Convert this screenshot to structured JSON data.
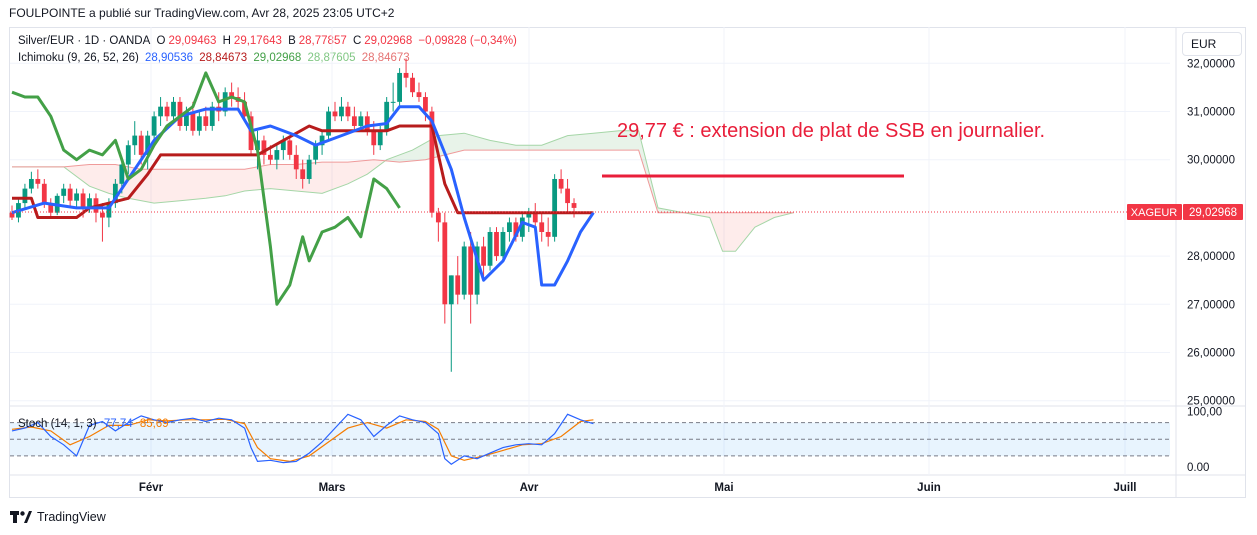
{
  "header": {
    "published": "FOULPOINTE a publié sur TradingView.com, Avr 28, 2025 23:05 UTC+2"
  },
  "legend": {
    "symbol": "Silver/EUR · 1D · OANDA",
    "o_label": "O",
    "o_value": "29,09463",
    "h_label": "H",
    "h_value": "29,17643",
    "b_label": "B",
    "b_value": "28,77857",
    "c_label": "C",
    "c_value": "29,02968",
    "change": "−0,09828 (−0,34%)",
    "ichimoku_label": "Ichimoku (9, 26, 52, 26)",
    "ichimoku_values": [
      "28,90536",
      "28,84673",
      "29,02968",
      "28,87605",
      "28,84673"
    ],
    "stoch_label": "Stoch (14, 1, 3)",
    "stoch_values": [
      "77,74",
      "85,69"
    ]
  },
  "currency_button": "EUR",
  "price_tag": {
    "symbol": "XAGEUR",
    "value": "29,02968"
  },
  "annotation": "29,77 € : extension de plat de SSB en journalier.",
  "brand": "TradingView",
  "colors": {
    "up": "#089981",
    "down": "#f23645",
    "tenkan": "#2962ff",
    "kijun": "#b71c1c",
    "chikou": "#43a047",
    "spanA": "#a5d6a7",
    "spanB": "#ef9a9a",
    "annotation": "#e91e3a",
    "stochK": "#2962ff",
    "stochD": "#f57c00"
  },
  "chart_data": {
    "type": "candlestick",
    "y_axis_labels": [
      "32,00000",
      "31,00000",
      "30,00000",
      "28,00000",
      "27,00000",
      "26,00000",
      "25,00000"
    ],
    "x_axis_labels": [
      "Févr",
      "Mars",
      "Avr",
      "Mai",
      "Juin",
      "Juill"
    ],
    "last_price": 29.03,
    "extension_level": 29.77,
    "candles": [
      [
        28.9,
        29.05,
        28.75,
        28.8
      ],
      [
        28.8,
        29.2,
        28.7,
        29.1
      ],
      [
        29.1,
        29.5,
        29.0,
        29.4
      ],
      [
        29.4,
        29.75,
        29.3,
        29.6
      ],
      [
        29.6,
        29.8,
        29.4,
        29.5
      ],
      [
        29.5,
        29.6,
        29.0,
        29.1
      ],
      [
        29.1,
        29.2,
        28.8,
        28.9
      ],
      [
        28.9,
        29.3,
        28.85,
        29.25
      ],
      [
        29.25,
        29.5,
        29.1,
        29.4
      ],
      [
        29.4,
        29.5,
        29.0,
        29.15
      ],
      [
        29.15,
        29.4,
        29.0,
        29.3
      ],
      [
        29.3,
        29.4,
        28.8,
        29.0
      ],
      [
        29.0,
        29.3,
        28.9,
        29.2
      ],
      [
        29.2,
        29.3,
        28.7,
        28.9
      ],
      [
        28.9,
        29.1,
        28.3,
        28.8
      ],
      [
        28.8,
        29.2,
        28.6,
        29.1
      ],
      [
        29.1,
        29.6,
        29.0,
        29.5
      ],
      [
        29.5,
        30.0,
        29.3,
        29.9
      ],
      [
        29.9,
        30.4,
        29.7,
        30.3
      ],
      [
        30.3,
        30.8,
        30.1,
        30.5
      ],
      [
        30.5,
        30.6,
        29.9,
        30.1
      ],
      [
        30.1,
        30.6,
        29.8,
        30.5
      ],
      [
        30.5,
        31.0,
        30.4,
        30.9
      ],
      [
        30.9,
        31.3,
        30.7,
        31.1
      ],
      [
        31.1,
        31.2,
        30.8,
        30.9
      ],
      [
        30.9,
        31.3,
        30.8,
        31.2
      ],
      [
        31.2,
        31.3,
        30.6,
        30.7
      ],
      [
        30.7,
        31.1,
        30.6,
        31.0
      ],
      [
        31.0,
        31.2,
        30.5,
        30.6
      ],
      [
        30.6,
        31.0,
        30.5,
        30.9
      ],
      [
        30.9,
        31.1,
        30.6,
        30.7
      ],
      [
        30.7,
        31.2,
        30.6,
        31.1
      ],
      [
        31.1,
        31.4,
        30.8,
        31.0
      ],
      [
        31.0,
        31.5,
        30.9,
        31.4
      ],
      [
        31.4,
        31.6,
        31.1,
        31.3
      ],
      [
        31.3,
        31.5,
        31.0,
        31.2
      ],
      [
        31.2,
        31.4,
        30.8,
        30.9
      ],
      [
        30.9,
        31.0,
        30.1,
        30.2
      ],
      [
        30.2,
        30.6,
        29.8,
        30.4
      ],
      [
        30.4,
        30.5,
        29.9,
        30.1
      ],
      [
        30.1,
        30.3,
        29.9,
        30.0
      ],
      [
        30.0,
        30.3,
        29.8,
        30.2
      ],
      [
        30.2,
        30.5,
        30.0,
        30.4
      ],
      [
        30.4,
        30.5,
        30.0,
        30.1
      ],
      [
        30.1,
        30.3,
        29.6,
        29.8
      ],
      [
        29.8,
        30.0,
        29.4,
        29.6
      ],
      [
        29.6,
        30.1,
        29.5,
        30.0
      ],
      [
        30.0,
        30.4,
        29.9,
        30.3
      ],
      [
        30.3,
        30.6,
        30.1,
        30.5
      ],
      [
        30.5,
        31.1,
        30.4,
        31.0
      ],
      [
        31.0,
        31.2,
        30.8,
        30.9
      ],
      [
        30.9,
        31.3,
        30.8,
        31.1
      ],
      [
        31.1,
        31.2,
        30.8,
        30.9
      ],
      [
        30.9,
        31.1,
        30.6,
        30.7
      ],
      [
        30.7,
        31.0,
        30.6,
        30.9
      ],
      [
        30.9,
        31.0,
        30.5,
        30.6
      ],
      [
        30.6,
        30.8,
        30.1,
        30.3
      ],
      [
        30.3,
        30.7,
        30.2,
        30.6
      ],
      [
        30.6,
        31.3,
        30.5,
        31.2
      ],
      [
        31.2,
        31.6,
        31.0,
        31.2
      ],
      [
        31.2,
        31.9,
        31.1,
        31.8
      ],
      [
        31.8,
        32.1,
        31.5,
        31.7
      ],
      [
        31.7,
        31.8,
        31.3,
        31.4
      ],
      [
        31.4,
        31.6,
        31.2,
        31.3
      ],
      [
        31.3,
        31.4,
        30.8,
        31.0
      ],
      [
        31.0,
        31.1,
        28.8,
        28.9
      ],
      [
        28.9,
        29.0,
        28.3,
        28.7
      ],
      [
        28.7,
        28.9,
        26.6,
        27.0
      ],
      [
        27.0,
        27.6,
        25.6,
        27.6
      ],
      [
        27.6,
        28.0,
        27.0,
        27.2
      ],
      [
        27.2,
        28.3,
        27.1,
        28.2
      ],
      [
        28.2,
        28.5,
        26.6,
        27.2
      ],
      [
        27.2,
        28.3,
        27.0,
        28.2
      ],
      [
        28.2,
        28.4,
        27.5,
        27.8
      ],
      [
        27.8,
        28.6,
        27.7,
        28.5
      ],
      [
        28.5,
        28.6,
        27.9,
        28.0
      ],
      [
        28.0,
        28.6,
        27.9,
        28.5
      ],
      [
        28.5,
        28.8,
        28.3,
        28.7
      ],
      [
        28.7,
        28.8,
        28.3,
        28.4
      ],
      [
        28.4,
        28.9,
        28.3,
        28.8
      ],
      [
        28.8,
        29.0,
        28.5,
        28.9
      ],
      [
        28.9,
        29.1,
        28.6,
        28.7
      ],
      [
        28.7,
        28.9,
        28.3,
        28.5
      ],
      [
        28.5,
        28.8,
        28.2,
        28.4
      ],
      [
        28.4,
        29.7,
        28.3,
        29.6
      ],
      [
        29.6,
        29.8,
        29.3,
        29.4
      ],
      [
        29.4,
        29.6,
        28.9,
        29.1
      ],
      [
        29.1,
        29.2,
        28.8,
        29.0
      ]
    ],
    "tenkan": [
      [
        0,
        28.9
      ],
      [
        5,
        29.1
      ],
      [
        10,
        29.0
      ],
      [
        15,
        29.0
      ],
      [
        18,
        29.6
      ],
      [
        22,
        30.4
      ],
      [
        26,
        30.9
      ],
      [
        30,
        31.05
      ],
      [
        35,
        31.05
      ],
      [
        37,
        30.6
      ],
      [
        40,
        30.7
      ],
      [
        44,
        30.5
      ],
      [
        47,
        30.3
      ],
      [
        51,
        30.5
      ],
      [
        55,
        30.7
      ],
      [
        58,
        30.75
      ],
      [
        60,
        31.1
      ],
      [
        63,
        31.1
      ],
      [
        65,
        30.8
      ],
      [
        68,
        29.8
      ],
      [
        70,
        28.8
      ],
      [
        73,
        27.5
      ],
      [
        76,
        27.9
      ],
      [
        79,
        28.7
      ],
      [
        81,
        28.6
      ],
      [
        82,
        27.4
      ],
      [
        84,
        27.4
      ],
      [
        86,
        27.9
      ],
      [
        88,
        28.5
      ],
      [
        90,
        28.9
      ]
    ],
    "kijun": [
      [
        0,
        29.2
      ],
      [
        3,
        29.2
      ],
      [
        4,
        28.8
      ],
      [
        10,
        28.8
      ],
      [
        12,
        29.0
      ],
      [
        18,
        29.2
      ],
      [
        21,
        29.7
      ],
      [
        23,
        30.1
      ],
      [
        36,
        30.1
      ],
      [
        38,
        30.1
      ],
      [
        46,
        30.7
      ],
      [
        48,
        30.6
      ],
      [
        58,
        30.6
      ],
      [
        60,
        30.7
      ],
      [
        65,
        30.7
      ],
      [
        67,
        29.5
      ],
      [
        69,
        28.9
      ],
      [
        90,
        28.9
      ]
    ],
    "chikou": [
      [
        0,
        31.4
      ],
      [
        2,
        31.3
      ],
      [
        4,
        31.3
      ],
      [
        6,
        30.9
      ],
      [
        8,
        30.2
      ],
      [
        10,
        30.0
      ],
      [
        12,
        30.2
      ],
      [
        14,
        30.1
      ],
      [
        16,
        30.4
      ],
      [
        18,
        29.6
      ],
      [
        20,
        29.8
      ],
      [
        22,
        30.3
      ],
      [
        24,
        30.7
      ],
      [
        26,
        30.9
      ],
      [
        28,
        31.1
      ],
      [
        30,
        31.8
      ],
      [
        32,
        31.2
      ],
      [
        34,
        31.3
      ],
      [
        36,
        31.2
      ],
      [
        38,
        30.2
      ],
      [
        40,
        28.2
      ],
      [
        41,
        27.0
      ],
      [
        43,
        27.4
      ],
      [
        45,
        28.4
      ],
      [
        46,
        27.9
      ],
      [
        48,
        28.5
      ],
      [
        50,
        28.6
      ],
      [
        52,
        28.8
      ],
      [
        54,
        28.4
      ],
      [
        56,
        29.6
      ],
      [
        58,
        29.4
      ],
      [
        60,
        29.0
      ]
    ],
    "spanA": [
      [
        0,
        29.85
      ],
      [
        8,
        29.85
      ],
      [
        12,
        29.45
      ],
      [
        15,
        29.3
      ],
      [
        18,
        29.2
      ],
      [
        22,
        29.1
      ],
      [
        26,
        29.15
      ],
      [
        30,
        29.2
      ],
      [
        33,
        29.25
      ],
      [
        36,
        29.35
      ],
      [
        40,
        29.4
      ],
      [
        44,
        29.35
      ],
      [
        48,
        29.3
      ],
      [
        52,
        29.5
      ],
      [
        55,
        29.7
      ],
      [
        58,
        30.0
      ],
      [
        62,
        30.2
      ],
      [
        66,
        30.5
      ],
      [
        70,
        30.55
      ],
      [
        74,
        30.4
      ],
      [
        78,
        30.3
      ],
      [
        82,
        30.3
      ],
      [
        86,
        30.5
      ],
      [
        90,
        30.55
      ],
      [
        94,
        30.6
      ],
      [
        97,
        30.6
      ],
      [
        100,
        29.0
      ],
      [
        104,
        28.9
      ],
      [
        108,
        28.8
      ],
      [
        110,
        28.1
      ],
      [
        112,
        28.1
      ],
      [
        115,
        28.6
      ],
      [
        118,
        28.8
      ],
      [
        121,
        28.9
      ]
    ],
    "spanB": [
      [
        0,
        29.85
      ],
      [
        8,
        29.85
      ],
      [
        12,
        29.9
      ],
      [
        16,
        29.9
      ],
      [
        20,
        29.8
      ],
      [
        24,
        29.8
      ],
      [
        28,
        29.8
      ],
      [
        32,
        29.8
      ],
      [
        36,
        29.8
      ],
      [
        40,
        29.9
      ],
      [
        44,
        29.9
      ],
      [
        48,
        29.95
      ],
      [
        52,
        29.95
      ],
      [
        56,
        30.0
      ],
      [
        60,
        29.95
      ],
      [
        64,
        30.0
      ],
      [
        70,
        30.2
      ],
      [
        76,
        30.2
      ],
      [
        80,
        30.2
      ],
      [
        84,
        30.2
      ],
      [
        88,
        30.2
      ],
      [
        94,
        30.2
      ],
      [
        97,
        30.2
      ],
      [
        100,
        28.9
      ],
      [
        104,
        28.9
      ],
      [
        108,
        28.9
      ],
      [
        112,
        28.9
      ],
      [
        116,
        28.9
      ],
      [
        121,
        28.9
      ]
    ],
    "stochastic": {
      "y_axis_labels": [
        "100,00",
        "0.00"
      ],
      "k": [
        [
          0,
          65
        ],
        [
          2,
          70
        ],
        [
          4,
          80
        ],
        [
          6,
          55
        ],
        [
          8,
          40
        ],
        [
          10,
          20
        ],
        [
          12,
          75
        ],
        [
          14,
          82
        ],
        [
          16,
          65
        ],
        [
          18,
          80
        ],
        [
          20,
          92
        ],
        [
          22,
          85
        ],
        [
          24,
          80
        ],
        [
          26,
          85
        ],
        [
          28,
          88
        ],
        [
          30,
          82
        ],
        [
          32,
          88
        ],
        [
          34,
          85
        ],
        [
          36,
          70
        ],
        [
          37,
          35
        ],
        [
          38,
          10
        ],
        [
          40,
          12
        ],
        [
          42,
          8
        ],
        [
          44,
          10
        ],
        [
          46,
          25
        ],
        [
          48,
          45
        ],
        [
          50,
          70
        ],
        [
          52,
          95
        ],
        [
          54,
          85
        ],
        [
          56,
          55
        ],
        [
          58,
          75
        ],
        [
          60,
          92
        ],
        [
          62,
          85
        ],
        [
          64,
          80
        ],
        [
          66,
          60
        ],
        [
          67,
          15
        ],
        [
          68,
          5
        ],
        [
          70,
          20
        ],
        [
          72,
          15
        ],
        [
          74,
          25
        ],
        [
          76,
          35
        ],
        [
          78,
          40
        ],
        [
          80,
          42
        ],
        [
          82,
          40
        ],
        [
          84,
          60
        ],
        [
          86,
          95
        ],
        [
          88,
          85
        ],
        [
          90,
          78
        ]
      ],
      "d": [
        [
          0,
          68
        ],
        [
          3,
          72
        ],
        [
          6,
          65
        ],
        [
          9,
          40
        ],
        [
          12,
          55
        ],
        [
          15,
          75
        ],
        [
          18,
          75
        ],
        [
          21,
          85
        ],
        [
          24,
          83
        ],
        [
          27,
          85
        ],
        [
          30,
          85
        ],
        [
          33,
          86
        ],
        [
          36,
          78
        ],
        [
          38,
          35
        ],
        [
          40,
          15
        ],
        [
          43,
          10
        ],
        [
          46,
          20
        ],
        [
          49,
          45
        ],
        [
          52,
          70
        ],
        [
          55,
          80
        ],
        [
          58,
          70
        ],
        [
          61,
          85
        ],
        [
          64,
          82
        ],
        [
          66,
          68
        ],
        [
          68,
          20
        ],
        [
          70,
          12
        ],
        [
          73,
          20
        ],
        [
          76,
          30
        ],
        [
          79,
          40
        ],
        [
          82,
          42
        ],
        [
          85,
          55
        ],
        [
          88,
          82
        ],
        [
          90,
          85
        ]
      ]
    }
  }
}
